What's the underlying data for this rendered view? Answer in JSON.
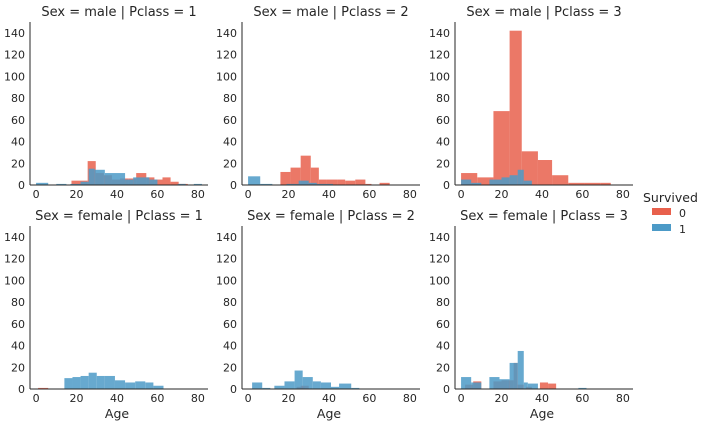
{
  "chart_data": {
    "type": "bar",
    "subtype": "faceted-histogram",
    "x_variable": "Age",
    "xlim": [
      -3,
      85
    ],
    "ylim": [
      0,
      150
    ],
    "x_ticks": [
      0,
      20,
      40,
      60,
      80
    ],
    "y_ticks": [
      0,
      20,
      40,
      60,
      80,
      100,
      120,
      140
    ],
    "xlabel": "Age",
    "grid": false,
    "legend": {
      "title": "Survived",
      "placement": "right",
      "entries": [
        {
          "label": "0",
          "color": "#e8604c"
        },
        {
          "label": "1",
          "color": "#4c9ac7"
        }
      ]
    },
    "series_colors": {
      "0": "#e8604c",
      "1": "#4c9ac7"
    },
    "panels": [
      {
        "title": "Sex = male | Pclass = 1",
        "show_xlabel": false,
        "series": [
          {
            "name": "0",
            "bins": [
              [
                17.5,
                25.5,
                4
              ],
              [
                25.5,
                29.5,
                22
              ],
              [
                29.5,
                33.5,
                11
              ],
              [
                33.5,
                37.5,
                9
              ],
              [
                37.5,
                41.5,
                5
              ],
              [
                41.5,
                45.5,
                6
              ],
              [
                45.5,
                49.5,
                6
              ],
              [
                49.5,
                54.5,
                11
              ],
              [
                54.5,
                58.5,
                7
              ],
              [
                58.5,
                62.5,
                5
              ],
              [
                62.5,
                66.5,
                7
              ],
              [
                66.5,
                70.5,
                3
              ],
              [
                70.5,
                75,
                1
              ]
            ]
          },
          {
            "name": "1",
            "bins": [
              [
                0,
                6,
                2
              ],
              [
                10,
                15,
                1
              ],
              [
                17,
                22,
                1
              ],
              [
                22,
                26,
                3
              ],
              [
                26,
                29,
                15
              ],
              [
                29,
                34,
                14
              ],
              [
                34,
                44,
                11
              ],
              [
                44,
                48,
                5
              ],
              [
                48,
                56,
                7
              ],
              [
                56,
                60,
                5
              ],
              [
                70,
                74,
                1
              ],
              [
                78,
                82,
                1
              ]
            ]
          }
        ]
      },
      {
        "title": "Sex = male | Pclass = 2",
        "show_xlabel": false,
        "series": [
          {
            "name": "0",
            "bins": [
              [
                16,
                21,
                12
              ],
              [
                21,
                26,
                16
              ],
              [
                26,
                31,
                27
              ],
              [
                31,
                35,
                16
              ],
              [
                35,
                39,
                5
              ],
              [
                39,
                44,
                5
              ],
              [
                44,
                48,
                5
              ],
              [
                48,
                53,
                4
              ],
              [
                53,
                58,
                5
              ],
              [
                58,
                61,
                1
              ],
              [
                65,
                70,
                2
              ]
            ]
          },
          {
            "name": "1",
            "bins": [
              [
                0,
                6,
                8
              ],
              [
                6,
                12,
                1
              ],
              [
                19,
                25,
                1
              ],
              [
                25,
                30,
                4
              ],
              [
                30,
                34,
                2
              ],
              [
                34,
                42,
                1
              ]
            ]
          }
        ]
      },
      {
        "title": "Sex = male | Pclass = 3",
        "show_xlabel": false,
        "series": [
          {
            "name": "0",
            "bins": [
              [
                0,
                8,
                11
              ],
              [
                8,
                16,
                7
              ],
              [
                16,
                24,
                68
              ],
              [
                24,
                30,
                142
              ],
              [
                30,
                38,
                31
              ],
              [
                38,
                45,
                23
              ],
              [
                45,
                53,
                9
              ],
              [
                53,
                61,
                2
              ],
              [
                61,
                69,
                2
              ],
              [
                69,
                74,
                2
              ]
            ]
          },
          {
            "name": "1",
            "bins": [
              [
                0,
                5,
                5
              ],
              [
                5,
                10,
                2
              ],
              [
                14,
                20,
                5
              ],
              [
                20,
                24,
                7
              ],
              [
                24,
                28,
                9
              ],
              [
                28,
                31,
                14
              ],
              [
                31,
                35,
                4
              ]
            ]
          }
        ]
      },
      {
        "title": "Sex = female | Pclass = 1",
        "show_xlabel": true,
        "series": [
          {
            "name": "0",
            "bins": [
              [
                1,
                6,
                1
              ]
            ]
          },
          {
            "name": "1",
            "bins": [
              [
                14,
                18,
                10
              ],
              [
                18,
                22,
                11
              ],
              [
                22,
                26,
                12
              ],
              [
                26,
                30,
                15
              ],
              [
                30,
                34,
                12
              ],
              [
                34,
                39,
                12
              ],
              [
                39,
                44,
                8
              ],
              [
                44,
                49,
                6
              ],
              [
                49,
                54,
                7
              ],
              [
                54,
                58,
                6
              ],
              [
                58,
                63,
                3
              ]
            ]
          }
        ]
      },
      {
        "title": "Sex = female | Pclass = 2",
        "show_xlabel": true,
        "series": [
          {
            "name": "0",
            "bins": [
              [
                24,
                28,
                2
              ],
              [
                26,
                30,
                3
              ]
            ]
          },
          {
            "name": "1",
            "bins": [
              [
                2,
                7,
                6
              ],
              [
                7,
                11,
                1
              ],
              [
                13,
                18,
                3
              ],
              [
                18,
                23,
                7
              ],
              [
                23,
                27,
                17
              ],
              [
                27,
                32,
                11
              ],
              [
                32,
                36,
                7
              ],
              [
                36,
                41,
                6
              ],
              [
                41,
                45,
                2
              ],
              [
                45,
                51,
                5
              ],
              [
                51,
                55,
                1
              ]
            ]
          }
        ]
      },
      {
        "title": "Sex = female | Pclass = 3",
        "show_xlabel": true,
        "series": [
          {
            "name": "0",
            "bins": [
              [
                2,
                6,
                4
              ],
              [
                6,
                10,
                7
              ],
              [
                16,
                20,
                7
              ],
              [
                20,
                23,
                8
              ],
              [
                23,
                26,
                8
              ],
              [
                26,
                28,
                24
              ],
              [
                28,
                31,
                4
              ],
              [
                32,
                35,
                2
              ],
              [
                39,
                43,
                6
              ],
              [
                43,
                47,
                5
              ]
            ]
          },
          {
            "name": "1",
            "bins": [
              [
                0,
                5,
                11
              ],
              [
                5,
                10,
                6
              ],
              [
                14,
                19,
                11
              ],
              [
                19,
                24,
                9
              ],
              [
                24,
                28,
                24
              ],
              [
                28,
                31,
                35
              ],
              [
                31,
                33,
                6
              ],
              [
                33,
                38,
                5
              ],
              [
                58,
                62,
                1
              ]
            ]
          }
        ]
      }
    ]
  }
}
